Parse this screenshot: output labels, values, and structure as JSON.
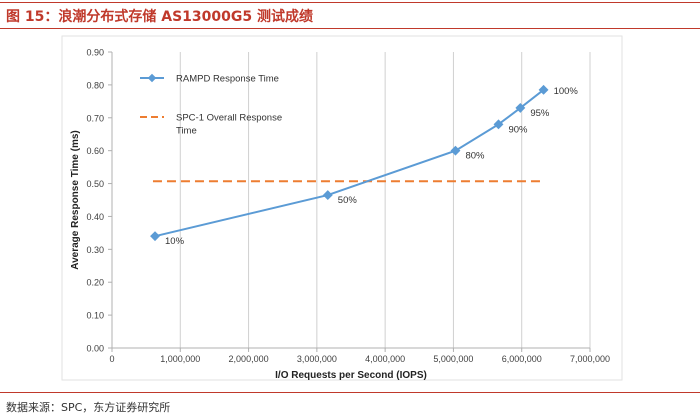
{
  "figure": {
    "title": "图 15：浪潮分布式存储 AS13000G5 测试成绩",
    "source": "数据来源：SPC，东方证券研究所"
  },
  "colors": {
    "accent": "#c0392b",
    "series_line": "#5b9bd5",
    "reference_line": "#ed7d31",
    "grid": "#d0d0d0",
    "text": "#404040"
  },
  "chart_data": {
    "type": "line",
    "xlabel": "I/O Requests per Second (IOPS)",
    "ylabel": "Average Response Time (ms)",
    "xlim": [
      0,
      7000000
    ],
    "ylim": [
      0,
      0.9
    ],
    "x_ticks": [
      0,
      1000000,
      2000000,
      3000000,
      4000000,
      5000000,
      6000000,
      7000000
    ],
    "x_tick_labels": [
      "0",
      "1,000,000",
      "2,000,000",
      "3,000,000",
      "4,000,000",
      "5,000,000",
      "6,000,000",
      "7,000,000"
    ],
    "y_ticks": [
      0,
      0.1,
      0.2,
      0.3,
      0.4,
      0.5,
      0.6,
      0.7,
      0.8,
      0.9
    ],
    "y_tick_labels": [
      "0.00",
      "0.10",
      "0.20",
      "0.30",
      "0.40",
      "0.50",
      "0.60",
      "0.70",
      "0.80",
      "0.90"
    ],
    "grid": "vertical",
    "legend_position": "top-left",
    "series": [
      {
        "name": "RAMPD Response Time",
        "x": [
          630000,
          3160000,
          5030000,
          5660000,
          5980000,
          6320000
        ],
        "y": [
          0.34,
          0.465,
          0.6,
          0.68,
          0.73,
          0.785
        ],
        "labels": [
          "10%",
          "50%",
          "80%",
          "90%",
          "95%",
          "100%"
        ]
      }
    ],
    "reference_lines": [
      {
        "name_lines": [
          "SPC-1 Overall Response",
          "Time"
        ],
        "y": 0.507,
        "x_range": [
          600000,
          6320000
        ],
        "style": "dashed"
      }
    ]
  }
}
